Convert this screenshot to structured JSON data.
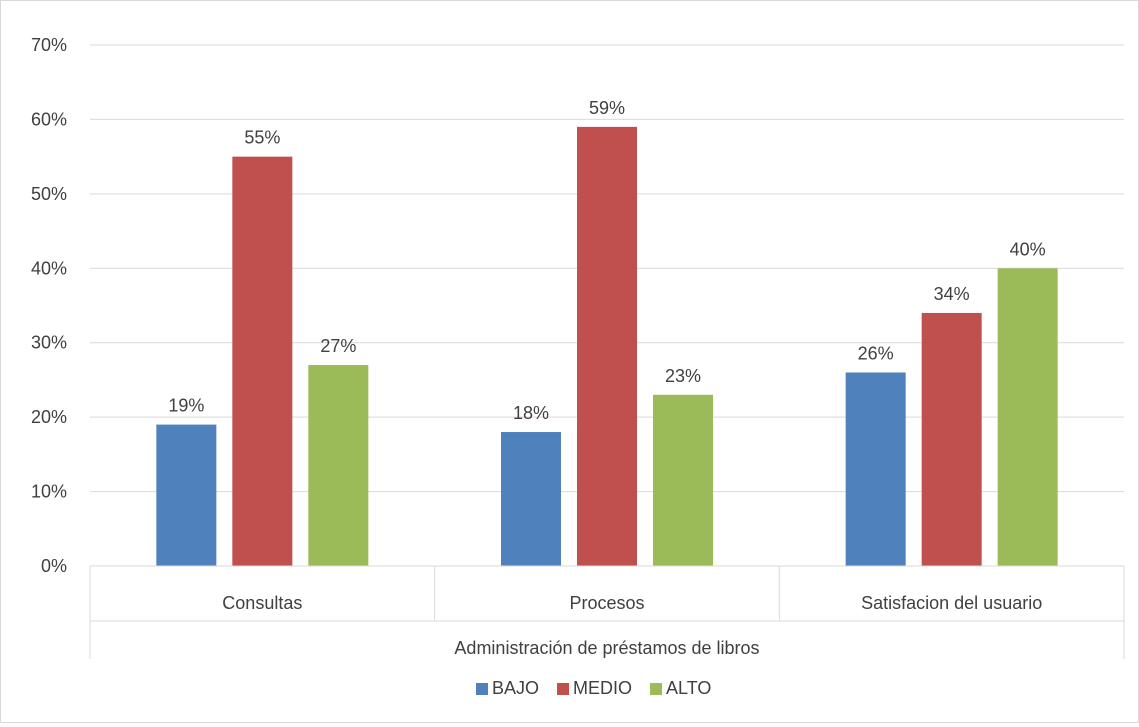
{
  "chart_data": {
    "type": "bar",
    "title": "",
    "xlabel": "Administración de préstamos de libros",
    "ylabel": "",
    "categories": [
      "Consultas",
      "Procesos",
      "Satisfacion del usuario"
    ],
    "series": [
      {
        "name": "BAJO",
        "values": [
          19,
          18,
          26
        ],
        "labels": [
          "19%",
          "18%",
          "26%"
        ],
        "color": "#4f81bd"
      },
      {
        "name": "MEDIO",
        "values": [
          55,
          59,
          34
        ],
        "labels": [
          "55%",
          "59%",
          "34%"
        ],
        "color": "#c0504d"
      },
      {
        "name": "ALTO",
        "values": [
          27,
          23,
          40
        ],
        "labels": [
          "27%",
          "23%",
          "40%"
        ],
        "color": "#9bbb59"
      }
    ],
    "y_ticks": [
      "0%",
      "10%",
      "20%",
      "30%",
      "40%",
      "50%",
      "60%",
      "70%"
    ],
    "ylim": [
      0,
      70
    ],
    "y_unit": "%",
    "grid": true,
    "gridline_color": "#d9d9d9",
    "legend_position": "bottom"
  }
}
